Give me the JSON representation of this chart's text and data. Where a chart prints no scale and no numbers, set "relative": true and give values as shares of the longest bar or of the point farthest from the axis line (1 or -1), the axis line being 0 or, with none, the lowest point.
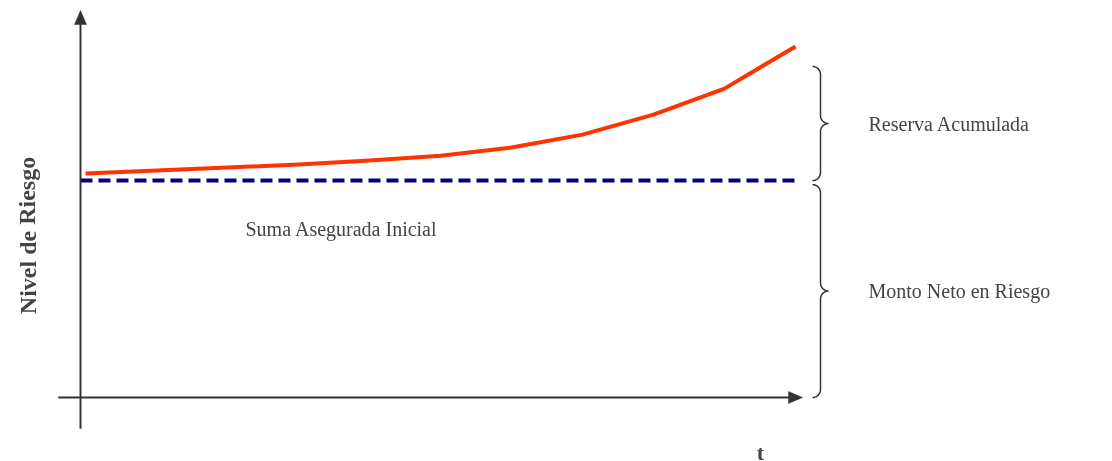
{
  "chart_data": {
    "type": "line",
    "relative": true,
    "xlabel": "t",
    "ylabel": "Nivel de Riesgo",
    "categories": [
      null,
      null,
      null,
      null,
      null,
      null,
      null,
      null,
      null,
      null,
      null
    ],
    "series": [
      {
        "color": "#ff3300",
        "values": [
          0.638,
          0.647,
          0.655,
          0.664,
          0.675,
          0.689,
          0.712,
          0.749,
          0.806,
          0.88,
          1.0
        ]
      }
    ],
    "ref_lines": [
      {
        "axis": "y",
        "value": 0.618,
        "label": "Suma Asegurada Inicial",
        "color": "#000080",
        "line_style": "dashed"
      }
    ],
    "annotations": [
      "Reserva Acumulada",
      "Monto Neto en Riesgo"
    ],
    "grid": false,
    "marker": "none",
    "line_style": "solid"
  }
}
